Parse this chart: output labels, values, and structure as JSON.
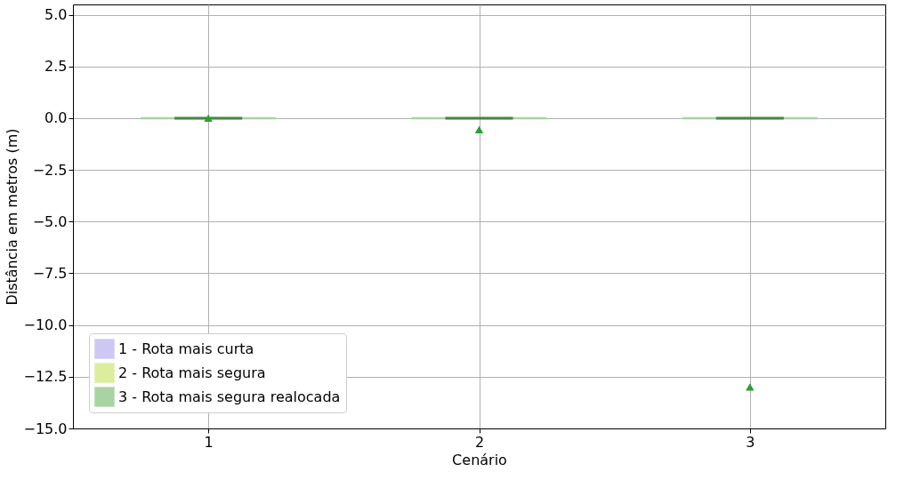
{
  "chart_data": {
    "type": "box",
    "xlabel": "Cenário",
    "ylabel": "Distância em metros (m)",
    "categories": [
      "1",
      "2",
      "3"
    ],
    "series": [
      {
        "name": "1 - Rota mais curta",
        "color": "#ccc8f2",
        "boxes": [
          null,
          null,
          null
        ]
      },
      {
        "name": "2 - Rota mais segura",
        "color": "#dcee9c",
        "boxes": [
          null,
          null,
          null
        ]
      },
      {
        "name": "3 - Rota mais segura realocada",
        "color": "#a8d4a3",
        "boxes": [
          {
            "low": 0,
            "q1": 0,
            "median": 0,
            "q3": 0,
            "high": 0,
            "mean": 0
          },
          {
            "low": 0,
            "q1": 0,
            "median": 0,
            "q3": 0,
            "high": 0,
            "mean": -0.55
          },
          {
            "low": 0,
            "q1": 0,
            "median": 0,
            "q3": 0,
            "high": 0,
            "mean": -13
          }
        ]
      }
    ],
    "ylim": [
      -15,
      5.5
    ],
    "yticks": [
      {
        "value": -15,
        "label": "−15.0"
      },
      {
        "value": -12.5,
        "label": "−12.5"
      },
      {
        "value": -10,
        "label": "−10.0"
      },
      {
        "value": -7.5,
        "label": "−7.5"
      },
      {
        "value": -5,
        "label": "−5.0"
      },
      {
        "value": -2.5,
        "label": "−2.5"
      },
      {
        "value": 0,
        "label": "0.0"
      },
      {
        "value": 2.5,
        "label": "2.5"
      },
      {
        "value": 5,
        "label": "5.0"
      }
    ],
    "grid": true,
    "legend": "bottom left",
    "marker": "triangle"
  }
}
